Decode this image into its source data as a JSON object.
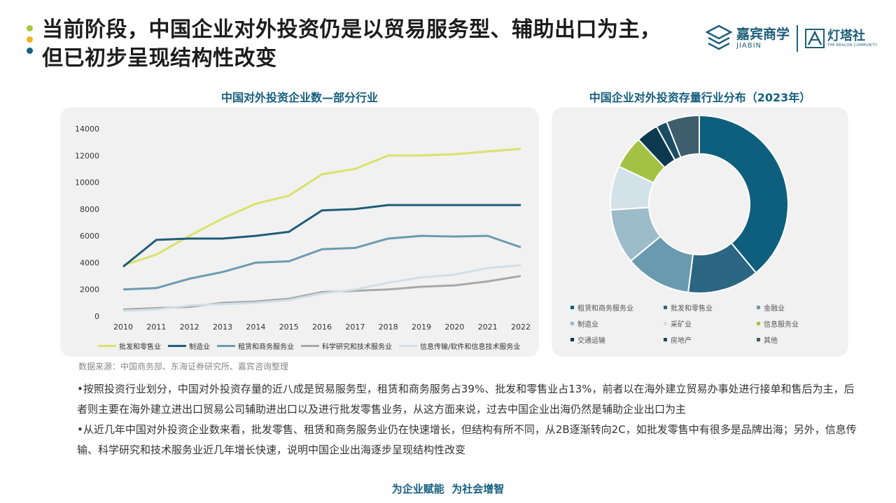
{
  "header": {
    "title_line1": "当前阶段，中国企业对外投资仍是以贸易服务型、辅助出口为主，",
    "title_line2": "但已初步呈现结构性改变",
    "bullet_colors": [
      "#a6c73c",
      "#f0b323",
      "#155f7f"
    ]
  },
  "logos": {
    "jiabin_main": "嘉宾商学",
    "jiabin_sub": "JIABIN",
    "dengta_main": "灯塔社",
    "dengta_sub": "THE BEACON COMMUNITY"
  },
  "chart_data": [
    {
      "type": "line",
      "title": "中国对外投资企业数—部分行业",
      "x": [
        "2010",
        "2011",
        "2012",
        "2013",
        "2014",
        "2015",
        "2016",
        "2017",
        "2018",
        "2019",
        "2020",
        "2021",
        "2022"
      ],
      "ylim": [
        0,
        14000
      ],
      "yticks": [
        "0",
        "2000",
        "4000",
        "6000",
        "8000",
        "10000",
        "12000",
        "14000"
      ],
      "grid": false,
      "legend_position": "bottom",
      "series": [
        {
          "name": "批发和零售业",
          "color": "#d9e26a",
          "values": [
            3800,
            4600,
            6000,
            7300,
            8400,
            9000,
            10600,
            11000,
            12000,
            12000,
            12100,
            12300,
            12500
          ]
        },
        {
          "name": "制造业",
          "color": "#1f5c7a",
          "values": [
            3700,
            5700,
            5800,
            5800,
            6000,
            6300,
            7900,
            8000,
            8300,
            8300,
            8300,
            8300,
            8300
          ]
        },
        {
          "name": "租赁和商务服务业",
          "color": "#6b9bb0",
          "values": [
            2000,
            2100,
            2800,
            3300,
            4000,
            4100,
            5000,
            5100,
            5800,
            6000,
            5950,
            6000,
            5150
          ]
        },
        {
          "name": "科学研究和技术服务业",
          "color": "#a8a8a8",
          "values": [
            500,
            600,
            700,
            1000,
            1100,
            1300,
            1800,
            1900,
            2000,
            2200,
            2300,
            2600,
            3000
          ]
        },
        {
          "name": "信息传输/软件和信息技术服务业",
          "color": "#cfe0e8",
          "values": [
            400,
            500,
            800,
            900,
            1000,
            1200,
            1700,
            2000,
            2500,
            2900,
            3100,
            3600,
            3800
          ]
        }
      ]
    },
    {
      "type": "pie",
      "donut": true,
      "title": "中国企业对外投资存量行业分布（2023年）",
      "legend_position": "bottom",
      "series": [
        {
          "name": "租赁和商务服务业",
          "value": 39,
          "color": "#0e5f7e"
        },
        {
          "name": "批发和零售业",
          "value": 13,
          "color": "#2b6683"
        },
        {
          "name": "金融业",
          "value": 12,
          "color": "#6a9aaf"
        },
        {
          "name": "制造业",
          "value": 10,
          "color": "#9dbcca"
        },
        {
          "name": "采矿业",
          "value": 8,
          "color": "#d3e1e8"
        },
        {
          "name": "信息服务业",
          "value": 6,
          "color": "#a3c245"
        },
        {
          "name": "交通运输",
          "value": 4,
          "color": "#0b3a4e"
        },
        {
          "name": "房地产",
          "value": 2,
          "color": "#1b4d63"
        },
        {
          "name": "其他",
          "value": 6,
          "color": "#3e5e6e"
        }
      ]
    }
  ],
  "source": "数据来源：中国商务部、东海证券研究所、嘉宾咨询整理",
  "body": {
    "para1": "•按照投资行业划分，中国对外投资存量的近八成是贸易服务型，租赁和商务服务占39%、批发和零售业占13%，前者以在海外建立贸易办事处进行接单和售后为主，后者则主要在海外建立进出口贸易公司辅助进出口以及进行批发零售业务，从这方面来说，过去中国企业出海仍然是辅助企业出口为主",
    "para2": "•从近几年中国对外投资企业数来看，批发零售、租赁和商务服务业仍在快速增长，但结构有所不同，从2B逐渐转向2C，如批发零售中有很多是品牌出海；另外，信息传输、科学研究和技术服务业近几年增长快速，说明中国企业出海逐步呈现结构性改变"
  },
  "footer": "为企业赋能  为社会增智"
}
